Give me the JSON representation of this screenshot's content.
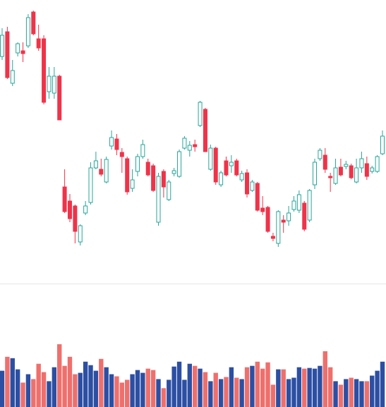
{
  "chart_data": {
    "type": "candlestick",
    "open": [
      320,
      355,
      282,
      325,
      328,
      335,
      383,
      345,
      345,
      270,
      268,
      292,
      135,
      115,
      108,
      57,
      98,
      113,
      162,
      160,
      142,
      193,
      203,
      184,
      175,
      133,
      157,
      178,
      170,
      165,
      85,
      157,
      117,
      154,
      150,
      190,
      187,
      195,
      222,
      245,
      160,
      190,
      138,
      172,
      165,
      172,
      145,
      155,
      130,
      140,
      105,
      106,
      65,
      55,
      88,
      87,
      103,
      102,
      112,
      88,
      138,
      175,
      180,
      150,
      140,
      163,
      164,
      165,
      142,
      162,
      168,
      157,
      157,
      182
    ],
    "high": [
      360,
      362,
      315,
      340,
      340,
      380,
      385,
      365,
      350,
      305,
      305,
      294,
      160,
      125,
      110,
      82,
      115,
      170,
      185,
      175,
      178,
      215,
      210,
      190,
      178,
      160,
      182,
      202,
      175,
      168,
      155,
      160,
      145,
      162,
      188,
      207,
      200,
      202,
      257,
      247,
      195,
      192,
      158,
      178,
      180,
      175,
      158,
      160,
      145,
      142,
      122,
      108,
      70,
      102,
      95,
      108,
      122,
      130,
      115,
      132,
      175,
      190,
      190,
      155,
      175,
      175,
      172,
      168,
      175,
      185,
      178,
      165,
      180,
      215
    ],
    "low": [
      315,
      288,
      278,
      320,
      312,
      332,
      350,
      328,
      252,
      260,
      260,
      230,
      98,
      85,
      55,
      52,
      95,
      110,
      160,
      150,
      140,
      188,
      180,
      155,
      124,
      128,
      150,
      175,
      150,
      128,
      80,
      120,
      115,
      150,
      148,
      188,
      178,
      185,
      220,
      185,
      158,
      138,
      135,
      150,
      155,
      150,
      142,
      120,
      128,
      100,
      95,
      70,
      58,
      50,
      70,
      80,
      100,
      98,
      72,
      85,
      132,
      172,
      155,
      128,
      138,
      150,
      160,
      146,
      140,
      155,
      145,
      154,
      155,
      180
    ],
    "close": [
      350,
      290,
      300,
      338,
      324,
      375,
      352,
      332,
      255,
      292,
      292,
      230,
      100,
      90,
      72,
      80,
      108,
      162,
      172,
      153,
      174,
      205,
      188,
      178,
      128,
      145,
      178,
      195,
      152,
      130,
      150,
      135,
      142,
      158,
      185,
      204,
      194,
      192,
      255,
      185,
      190,
      142,
      155,
      152,
      170,
      152,
      154,
      125,
      142,
      102,
      100,
      72,
      62,
      100,
      85,
      98,
      115,
      124,
      75,
      130,
      170,
      187,
      160,
      148,
      162,
      152,
      167,
      148,
      162,
      175,
      150,
      162,
      178,
      207
    ],
    "volume": [
      52,
      72,
      70,
      54,
      35,
      47,
      40,
      62,
      50,
      37,
      57,
      90,
      59,
      72,
      47,
      49,
      65,
      60,
      52,
      69,
      57,
      47,
      44,
      35,
      39,
      47,
      53,
      49,
      55,
      53,
      40,
      27,
      39,
      58,
      65,
      39,
      62,
      59,
      55,
      50,
      37,
      49,
      40,
      43,
      57,
      42,
      40,
      57,
      59,
      65,
      55,
      64,
      32,
      54,
      54,
      40,
      42,
      57,
      55,
      56,
      55,
      59,
      80,
      57,
      37,
      32,
      40,
      42,
      40,
      37,
      37,
      45,
      52,
      65
    ],
    "ylim": [
      0,
      400
    ],
    "volume_ylim": [
      0,
      175
    ],
    "up_color": "#26a69a",
    "down_color": "#ef3349",
    "volume_up_color": "#2c4fa3",
    "volume_down_color": "#ef6f6c"
  }
}
